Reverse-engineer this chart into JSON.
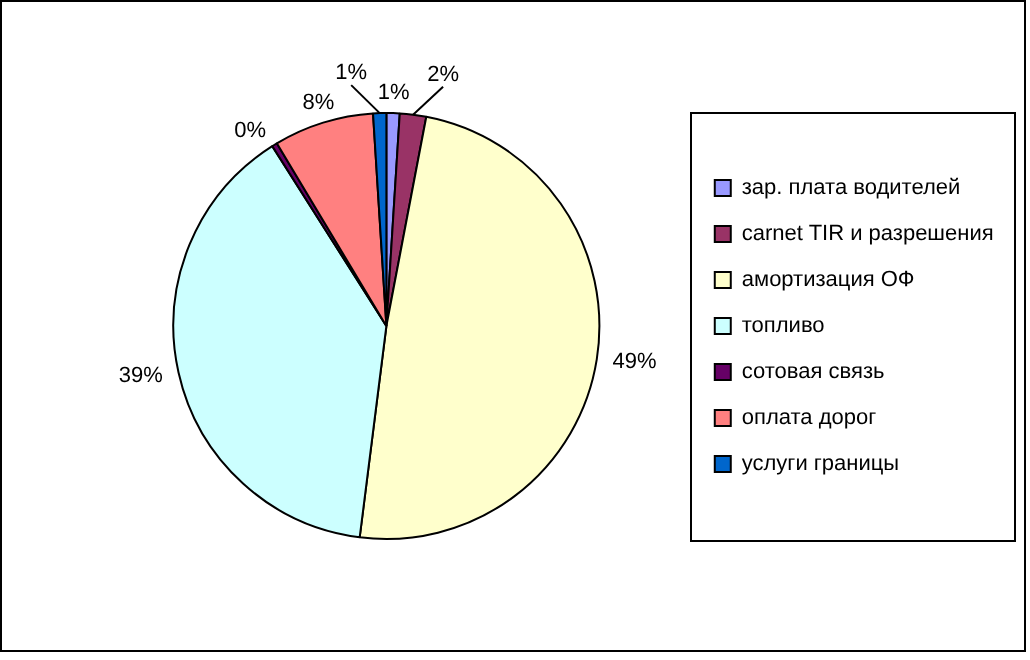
{
  "chart_data": {
    "type": "pie",
    "categories": [
      "зар. плата водителей",
      "carnet TIR и разрешения",
      "амортизация ОФ",
      "топливо",
      "сотовая связь",
      "оплата дорог",
      "услуги границы"
    ],
    "values": [
      1,
      2,
      49,
      39,
      0.4,
      7.6,
      1
    ],
    "value_labels": [
      "1%",
      "2%",
      "49%",
      "39%",
      "0%",
      "8%",
      "1%"
    ],
    "colors": [
      "#9999ff",
      "#993366",
      "#ffffcc",
      "#ccffff",
      "#660066",
      "#ff8080",
      "#0066cc"
    ],
    "legend": "right"
  }
}
